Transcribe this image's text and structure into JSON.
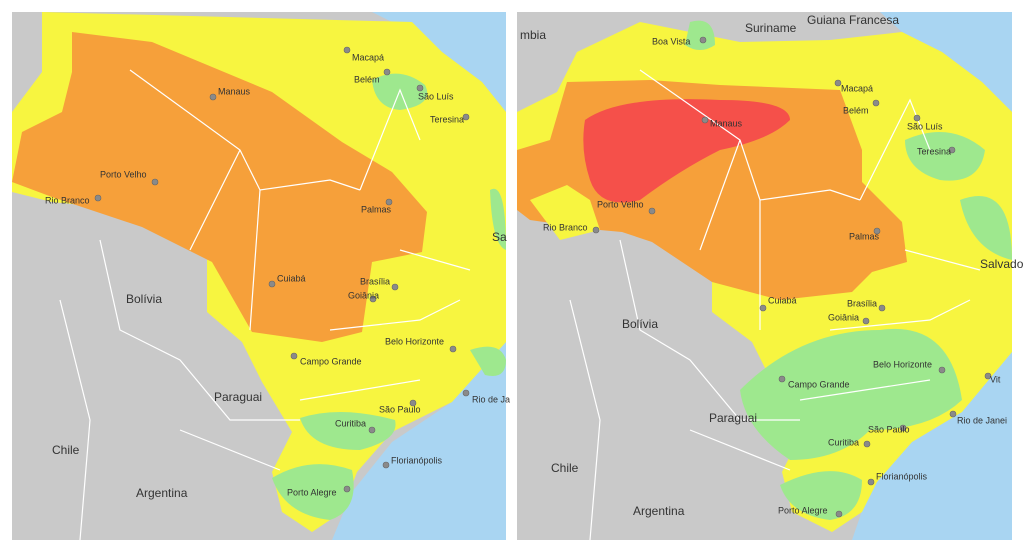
{
  "panels": [
    {
      "labels": [
        "Manaus",
        "Macapá",
        "Belém",
        "São Luís",
        "Teresina",
        "Porto Velho",
        "Rio Branco",
        "Palmas",
        "Sa",
        "Cuiabá",
        "Brasília",
        "Goiânia",
        "Bolívia",
        "Belo Horizonte",
        "Campo Grande",
        "Paraguai",
        "São Paulo",
        "Rio de Ja",
        "Curitiba",
        "Chile",
        "Florianópolis",
        "Argentina",
        "Porto Alegre"
      ]
    },
    {
      "labels": [
        "mbia",
        "Boa Vista",
        "Suriname",
        "Guiana Francesa",
        "Macapá",
        "Manaus",
        "Belém",
        "São Luís",
        "Teresina",
        "Porto Velho",
        "Rio Branco",
        "Palmas",
        "Salvado",
        "Cuiabá",
        "Brasília",
        "Goiânia",
        "Bolívia",
        "Belo Horizonte",
        "Vit",
        "Campo Grande",
        "Paraguai",
        "Rio de Janei",
        "São Paulo",
        "Curitiba",
        "Chile",
        "Florianópolis",
        "Argentina",
        "Porto Alegre"
      ]
    }
  ]
}
